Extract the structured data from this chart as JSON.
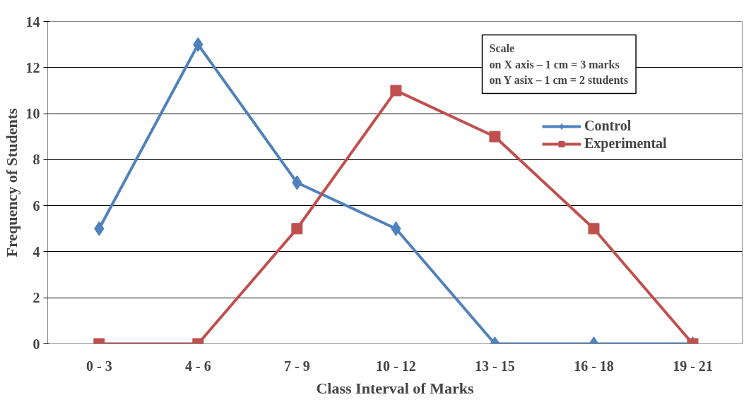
{
  "chart_data": {
    "type": "line",
    "xlabel": "Class Interval of Marks",
    "ylabel": "Frequency of Students",
    "categories": [
      "0 - 3",
      "4 - 6",
      "7 - 9",
      "10 - 12",
      "13 - 15",
      "16 - 18",
      "19 - 21"
    ],
    "series": [
      {
        "name": "Control",
        "color": "#4f81bd",
        "marker": "diamond",
        "values": [
          5,
          13,
          7,
          5,
          0,
          0,
          0
        ]
      },
      {
        "name": "Experimental",
        "color": "#c0504d",
        "marker": "square",
        "values": [
          0,
          0,
          5,
          11,
          9,
          5,
          0
        ]
      }
    ],
    "ylim": [
      0,
      14
    ],
    "yticks": [
      0,
      2,
      4,
      6,
      8,
      10,
      12,
      14
    ],
    "grid": "y",
    "legend": "right",
    "line_style": "solid",
    "annotations": [
      "Scale\non X axis – 1 cm = 3 marks\non Y asix – 1 cm = 2 students"
    ]
  }
}
